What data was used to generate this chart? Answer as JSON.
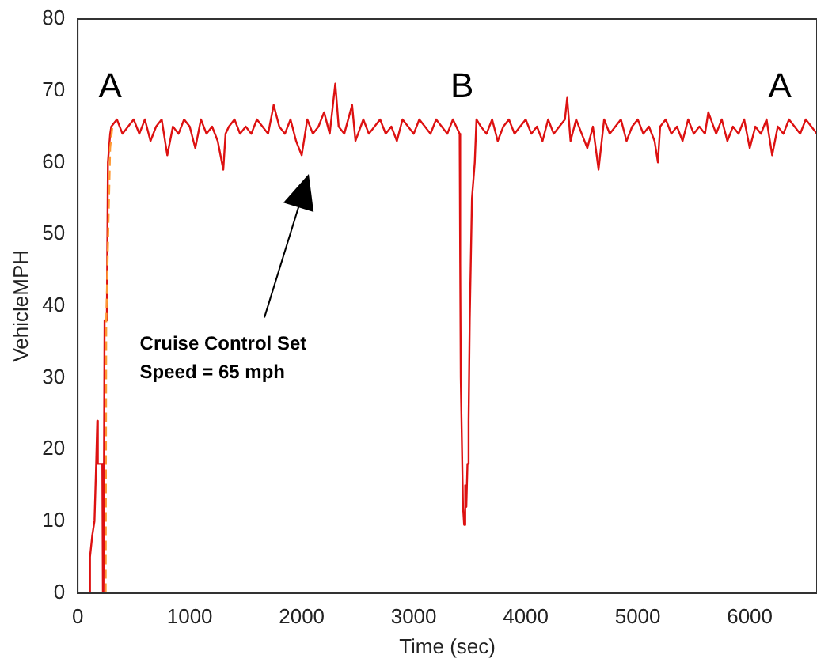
{
  "chart_data": {
    "type": "line",
    "xlabel": "Time (sec)",
    "ylabel": "VehicleMPH",
    "xlim": [
      0,
      6600
    ],
    "xticks": [
      0,
      1000,
      2000,
      3000,
      4000,
      5000,
      6000
    ],
    "ylim": [
      0,
      80
    ],
    "yticks": [
      0,
      10,
      20,
      30,
      40,
      50,
      60,
      70,
      80
    ],
    "grid": false,
    "legend": false,
    "marker": "none",
    "series": [
      {
        "color": "#ff9933",
        "line_style": "dashed",
        "x": [
          250,
          255,
          290,
          310
        ],
        "values": [
          0,
          38,
          62,
          65
        ]
      },
      {
        "color": "#dd1111",
        "line_style": "solid",
        "x": [
          100,
          110,
          130,
          150,
          165,
          175,
          180,
          200,
          220,
          225,
          230,
          240,
          260,
          270,
          290,
          300,
          350,
          400,
          450,
          500,
          550,
          600,
          650,
          700,
          750,
          800,
          850,
          900,
          950,
          1000,
          1050,
          1100,
          1150,
          1200,
          1250,
          1300,
          1320,
          1350,
          1400,
          1450,
          1500,
          1550,
          1600,
          1650,
          1700,
          1750,
          1800,
          1850,
          1900,
          1950,
          2000,
          2050,
          2100,
          2150,
          2200,
          2250,
          2300,
          2330,
          2380,
          2450,
          2480,
          2550,
          2600,
          2650,
          2700,
          2750,
          2800,
          2850,
          2900,
          2950,
          3000,
          3050,
          3100,
          3150,
          3200,
          3250,
          3300,
          3350,
          3380,
          3410,
          3415,
          3420,
          3440,
          3450,
          3460,
          3470,
          3480,
          3490,
          3500,
          3520,
          3545,
          3560,
          3600,
          3650,
          3700,
          3750,
          3800,
          3850,
          3900,
          3950,
          4000,
          4050,
          4100,
          4150,
          4200,
          4250,
          4300,
          4350,
          4370,
          4400,
          4450,
          4500,
          4550,
          4600,
          4650,
          4700,
          4750,
          4800,
          4850,
          4900,
          4950,
          5000,
          5050,
          5100,
          5150,
          5180,
          5200,
          5250,
          5300,
          5350,
          5400,
          5450,
          5500,
          5550,
          5600,
          5630,
          5700,
          5750,
          5800,
          5850,
          5900,
          5950,
          6000,
          6050,
          6100,
          6150,
          6200,
          6250,
          6300,
          6350,
          6400,
          6450,
          6500,
          6550,
          6600
        ],
        "values": [
          0,
          5,
          8,
          10,
          18,
          24,
          18,
          18,
          18,
          0,
          0,
          38,
          38,
          60,
          64,
          65,
          66,
          64,
          65,
          66,
          64,
          66,
          63,
          65,
          66,
          61,
          65,
          64,
          66,
          65,
          62,
          66,
          64,
          65,
          63,
          59,
          64,
          65,
          66,
          64,
          65,
          64,
          66,
          65,
          64,
          68,
          65,
          64,
          66,
          63,
          61,
          66,
          64,
          65,
          67,
          64,
          71,
          65,
          64,
          68,
          63,
          66,
          64,
          65,
          66,
          64,
          65,
          63,
          66,
          65,
          64,
          66,
          65,
          64,
          66,
          65,
          64,
          66,
          65,
          64,
          46,
          30,
          12,
          9.5,
          15,
          12,
          18,
          24,
          38,
          55,
          60,
          66,
          65,
          64,
          66,
          63,
          65,
          66,
          64,
          65,
          66,
          64,
          65,
          63,
          66,
          64,
          65,
          66,
          69,
          63,
          66,
          64,
          62,
          65,
          59,
          66,
          64,
          65,
          66,
          63,
          65,
          66,
          64,
          65,
          63,
          60,
          65,
          66,
          64,
          65,
          63,
          66,
          64,
          65,
          64,
          67,
          64,
          66,
          63,
          65,
          64,
          66,
          62,
          65,
          64,
          66,
          61,
          65,
          64,
          66,
          65,
          64,
          66,
          65,
          64
        ]
      }
    ],
    "annotations": [
      "A",
      "B",
      "A",
      "Cruise Control Set\nSpeed = 65 mph"
    ]
  }
}
